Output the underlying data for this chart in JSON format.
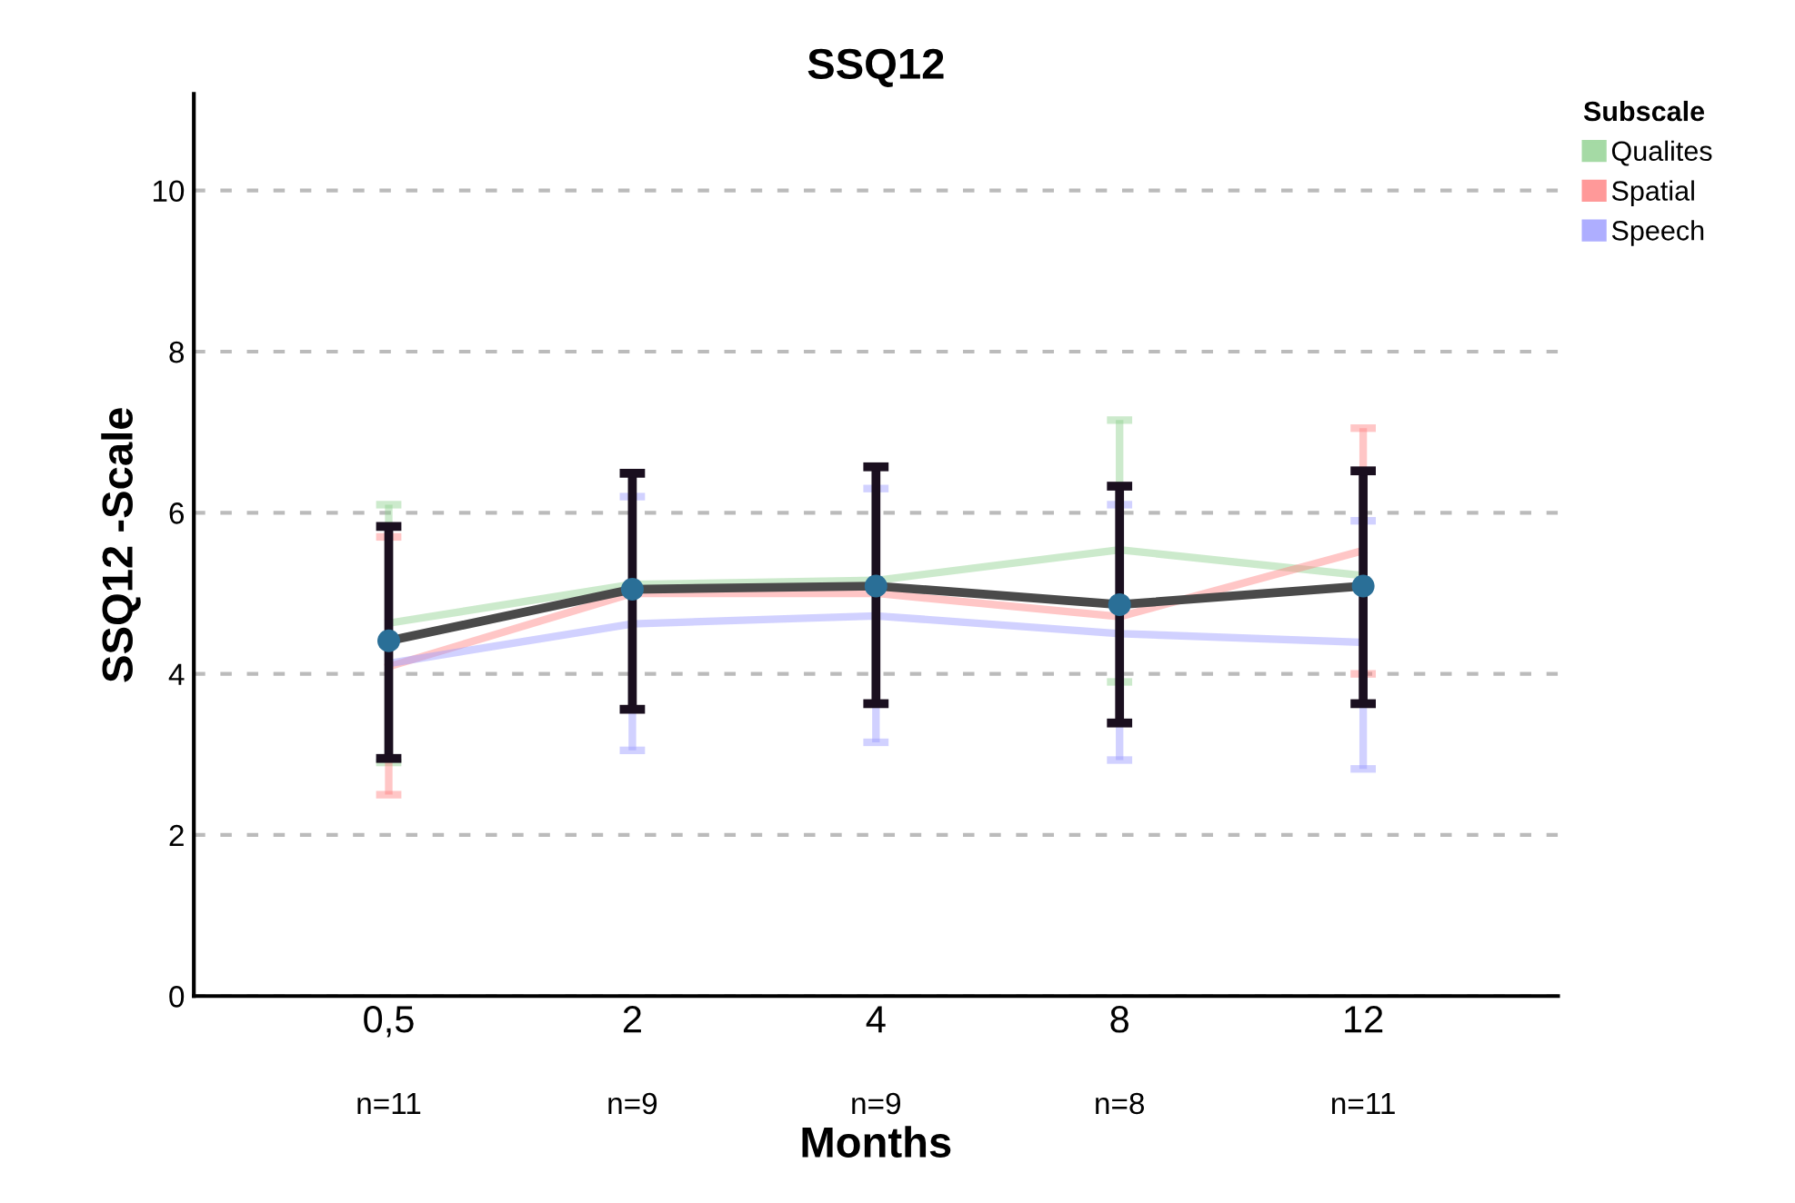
{
  "chart_data": {
    "type": "line",
    "title": "SSQ12",
    "xlabel": "Months",
    "ylabel": "SSQ12 -Scale",
    "legend_title": "Subscale",
    "categories": [
      "0,5",
      "2",
      "4",
      "8",
      "12"
    ],
    "series": [
      {
        "name": "Qualites",
        "color": "#8fd18f",
        "values": [
          4.63,
          5.11,
          5.16,
          5.54,
          5.22
        ],
        "errors": [
          [
            2.9,
            6.1
          ],
          null,
          null,
          [
            3.9,
            7.15
          ],
          null
        ]
      },
      {
        "name": "Spatial",
        "color": "#ff8080",
        "values": [
          4.09,
          5.0,
          5.0,
          4.71,
          5.53
        ],
        "errors": [
          [
            2.5,
            5.7
          ],
          null,
          null,
          null,
          [
            4.0,
            7.05
          ]
        ]
      },
      {
        "name": "Speech",
        "color": "#9a9aff",
        "values": [
          4.13,
          4.62,
          4.72,
          4.5,
          4.39
        ],
        "errors": [
          null,
          [
            3.05,
            6.2
          ],
          [
            3.15,
            6.3
          ],
          [
            2.93,
            6.1
          ],
          [
            2.82,
            5.9
          ]
        ]
      },
      {
        "color": "#4a4a4a",
        "marker": "circle",
        "values": [
          4.41,
          5.05,
          5.09,
          4.86,
          5.09
        ],
        "errors": [
          [
            2.95,
            5.83
          ],
          [
            3.56,
            6.49
          ],
          [
            3.63,
            6.57
          ],
          [
            3.39,
            6.33
          ],
          [
            3.63,
            6.52
          ]
        ]
      }
    ],
    "ylim": [
      0,
      11.2
    ],
    "yticks": [
      0,
      2,
      4,
      6,
      8,
      10
    ],
    "grid": "y",
    "legend": "top right",
    "line_style": "solid",
    "annotations": [
      "n=11",
      "n=9",
      "n=9",
      "n=8",
      "n=11"
    ]
  }
}
